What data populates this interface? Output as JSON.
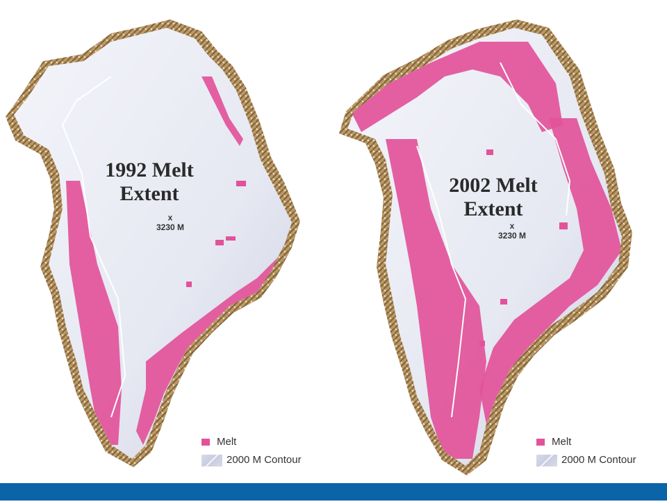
{
  "panels": [
    {
      "title_line1": "1992 Melt",
      "title_line2": "Extent",
      "summit_marker": "x",
      "summit_label": "3230 M",
      "melt_extent": "limited"
    },
    {
      "title_line1": "2002 Melt",
      "title_line2": "Extent",
      "summit_marker": "x",
      "summit_label": "3230 M",
      "melt_extent": "extensive"
    }
  ],
  "legend": {
    "melt_label": "Melt",
    "contour_label": "2000 M Contour"
  },
  "colors": {
    "ice": "#e9ebf4",
    "ice_shadow": "#c9cde0",
    "melt": "#e2529a",
    "rock": "#b08a4e",
    "rock_dark": "#7a5a2c",
    "contour": "#ffffff",
    "bottom_bar": "#0b63a8"
  }
}
